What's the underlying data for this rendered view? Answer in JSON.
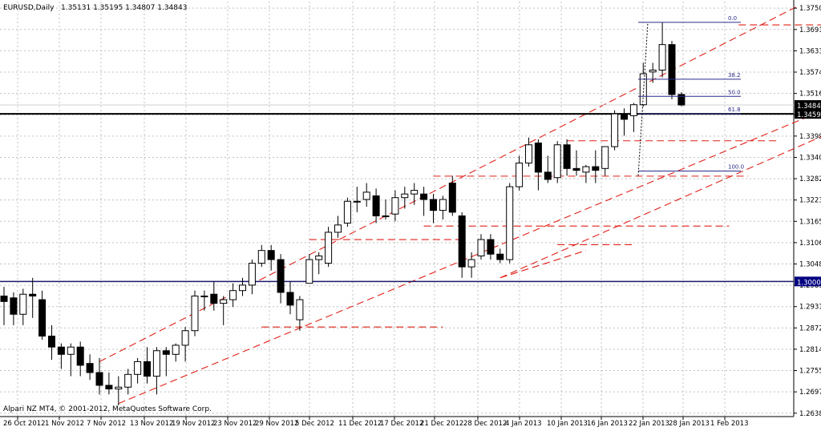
{
  "header": {
    "symbol_label": "EURUSD,Daily",
    "ohlc": "1.35131 1.35195 1.34807 1.34843"
  },
  "footer": {
    "copyright": "Alpari NZ MT4, © 2001-2012, MetaQuotes Software Corp."
  },
  "colors": {
    "background": "#ffffff",
    "grid": "#c0c0c0",
    "candle_body_bear": "#000000",
    "candle_body_bull": "#ffffff",
    "trendline": "#e0201a",
    "fibo": "#2a2a8a",
    "hline_dark": "#000000",
    "hline_navy": "#1a1a6a",
    "price_tag_bg": "#000000",
    "price_tag_fg": "#ffffff",
    "navy_tag_bg": "#000080"
  },
  "chart_data": {
    "type": "candlestick",
    "title": "EURUSD,Daily",
    "grid": true,
    "ylim": [
      1.2638,
      1.3757
    ],
    "y_ticks": [
      "1.37500",
      "1.36915",
      "1.36330",
      "1.35745",
      "1.35160",
      "1.34575",
      "1.33990",
      "1.33405",
      "1.32820",
      "1.32235",
      "1.31650",
      "1.31065",
      "1.30480",
      "1.29895",
      "1.29310",
      "1.28725",
      "1.28140",
      "1.27555",
      "1.26970",
      "1.26385"
    ],
    "x_ticks": [
      "26 Oct 2012",
      "1 Nov 2012",
      "7 Nov 2012",
      "13 Nov 2012",
      "19 Nov 2012",
      "23 Nov 2012",
      "29 Nov 2012",
      "5 Dec 2012",
      "11 Dec 2012",
      "17 Dec 2012",
      "21 Dec 2012",
      "28 Dec 2012",
      "4 Jan 2013",
      "10 Jan 2013",
      "16 Jan 2013",
      "22 Jan 2013",
      "28 Jan 2013",
      "1 Feb 2013"
    ],
    "current_price": "1.34843",
    "level_price": "1.34598",
    "round_level": "1.30000",
    "candles": [
      {
        "o": 1.296,
        "h": 1.2985,
        "l": 1.288,
        "c": 1.2945
      },
      {
        "o": 1.2955,
        "h": 1.297,
        "l": 1.288,
        "c": 1.291
      },
      {
        "o": 1.291,
        "h": 1.298,
        "l": 1.288,
        "c": 1.2965
      },
      {
        "o": 1.2965,
        "h": 1.301,
        "l": 1.29,
        "c": 1.296
      },
      {
        "o": 1.295,
        "h": 1.2975,
        "l": 1.284,
        "c": 1.285
      },
      {
        "o": 1.285,
        "h": 1.288,
        "l": 1.2785,
        "c": 1.282
      },
      {
        "o": 1.282,
        "h": 1.283,
        "l": 1.276,
        "c": 1.28
      },
      {
        "o": 1.28,
        "h": 1.283,
        "l": 1.274,
        "c": 1.282
      },
      {
        "o": 1.282,
        "h": 1.2835,
        "l": 1.274,
        "c": 1.277
      },
      {
        "o": 1.2775,
        "h": 1.28,
        "l": 1.273,
        "c": 1.275
      },
      {
        "o": 1.275,
        "h": 1.279,
        "l": 1.269,
        "c": 1.2715
      },
      {
        "o": 1.2715,
        "h": 1.275,
        "l": 1.269,
        "c": 1.2705
      },
      {
        "o": 1.2705,
        "h": 1.274,
        "l": 1.266,
        "c": 1.271
      },
      {
        "o": 1.271,
        "h": 1.276,
        "l": 1.269,
        "c": 1.2745
      },
      {
        "o": 1.2745,
        "h": 1.279,
        "l": 1.272,
        "c": 1.278
      },
      {
        "o": 1.278,
        "h": 1.282,
        "l": 1.272,
        "c": 1.274
      },
      {
        "o": 1.274,
        "h": 1.282,
        "l": 1.269,
        "c": 1.281
      },
      {
        "o": 1.281,
        "h": 1.282,
        "l": 1.274,
        "c": 1.28
      },
      {
        "o": 1.28,
        "h": 1.283,
        "l": 1.278,
        "c": 1.2825
      },
      {
        "o": 1.2825,
        "h": 1.2875,
        "l": 1.278,
        "c": 1.2865
      },
      {
        "o": 1.2865,
        "h": 1.2975,
        "l": 1.285,
        "c": 1.296
      },
      {
        "o": 1.296,
        "h": 1.2975,
        "l": 1.292,
        "c": 1.296
      },
      {
        "o": 1.2965,
        "h": 1.3,
        "l": 1.292,
        "c": 1.294
      },
      {
        "o": 1.294,
        "h": 1.296,
        "l": 1.288,
        "c": 1.295
      },
      {
        "o": 1.295,
        "h": 1.2995,
        "l": 1.293,
        "c": 1.2975
      },
      {
        "o": 1.2975,
        "h": 1.301,
        "l": 1.296,
        "c": 1.299
      },
      {
        "o": 1.299,
        "h": 1.306,
        "l": 1.2965,
        "c": 1.305
      },
      {
        "o": 1.305,
        "h": 1.31,
        "l": 1.304,
        "c": 1.3085
      },
      {
        "o": 1.3085,
        "h": 1.31,
        "l": 1.303,
        "c": 1.306
      },
      {
        "o": 1.306,
        "h": 1.3075,
        "l": 1.294,
        "c": 1.297
      },
      {
        "o": 1.297,
        "h": 1.3,
        "l": 1.291,
        "c": 1.2935
      },
      {
        "o": 1.2895,
        "h": 1.296,
        "l": 1.2865,
        "c": 1.295
      },
      {
        "o": 1.2995,
        "h": 1.3075,
        "l": 1.2995,
        "c": 1.306
      },
      {
        "o": 1.306,
        "h": 1.308,
        "l": 1.302,
        "c": 1.307
      },
      {
        "o": 1.305,
        "h": 1.315,
        "l": 1.304,
        "c": 1.3135
      },
      {
        "o": 1.3135,
        "h": 1.318,
        "l": 1.312,
        "c": 1.3155
      },
      {
        "o": 1.316,
        "h": 1.323,
        "l": 1.315,
        "c": 1.322
      },
      {
        "o": 1.322,
        "h": 1.326,
        "l": 1.319,
        "c": 1.322
      },
      {
        "o": 1.3225,
        "h": 1.327,
        "l": 1.3205,
        "c": 1.3245
      },
      {
        "o": 1.3235,
        "h": 1.3255,
        "l": 1.316,
        "c": 1.318
      },
      {
        "o": 1.318,
        "h": 1.3225,
        "l": 1.317,
        "c": 1.318
      },
      {
        "o": 1.3185,
        "h": 1.325,
        "l": 1.3165,
        "c": 1.323
      },
      {
        "o": 1.323,
        "h": 1.326,
        "l": 1.32,
        "c": 1.324
      },
      {
        "o": 1.324,
        "h": 1.327,
        "l": 1.321,
        "c": 1.325
      },
      {
        "o": 1.324,
        "h": 1.326,
        "l": 1.318,
        "c": 1.3225
      },
      {
        "o": 1.3225,
        "h": 1.324,
        "l": 1.316,
        "c": 1.3195
      },
      {
        "o": 1.3195,
        "h": 1.3235,
        "l": 1.317,
        "c": 1.3225
      },
      {
        "o": 1.327,
        "h": 1.329,
        "l": 1.318,
        "c": 1.319
      },
      {
        "o": 1.318,
        "h": 1.319,
        "l": 1.301,
        "c": 1.304
      },
      {
        "o": 1.304,
        "h": 1.308,
        "l": 1.301,
        "c": 1.306
      },
      {
        "o": 1.307,
        "h": 1.313,
        "l": 1.306,
        "c": 1.3115
      },
      {
        "o": 1.3115,
        "h": 1.313,
        "l": 1.306,
        "c": 1.3075
      },
      {
        "o": 1.3075,
        "h": 1.309,
        "l": 1.305,
        "c": 1.306
      },
      {
        "o": 1.306,
        "h": 1.327,
        "l": 1.305,
        "c": 1.326
      },
      {
        "o": 1.326,
        "h": 1.3345,
        "l": 1.325,
        "c": 1.3325
      },
      {
        "o": 1.3325,
        "h": 1.3395,
        "l": 1.3315,
        "c": 1.3375
      },
      {
        "o": 1.338,
        "h": 1.339,
        "l": 1.325,
        "c": 1.33
      },
      {
        "o": 1.33,
        "h": 1.3345,
        "l": 1.327,
        "c": 1.328
      },
      {
        "o": 1.3285,
        "h": 1.3385,
        "l": 1.327,
        "c": 1.3375
      },
      {
        "o": 1.3375,
        "h": 1.339,
        "l": 1.329,
        "c": 1.331
      },
      {
        "o": 1.331,
        "h": 1.336,
        "l": 1.329,
        "c": 1.3305
      },
      {
        "o": 1.33,
        "h": 1.332,
        "l": 1.327,
        "c": 1.3315
      },
      {
        "o": 1.3315,
        "h": 1.336,
        "l": 1.327,
        "c": 1.3305
      },
      {
        "o": 1.331,
        "h": 1.337,
        "l": 1.329,
        "c": 1.337
      },
      {
        "o": 1.337,
        "h": 1.347,
        "l": 1.336,
        "c": 1.346
      },
      {
        "o": 1.346,
        "h": 1.3475,
        "l": 1.34,
        "c": 1.3445
      },
      {
        "o": 1.3455,
        "h": 1.349,
        "l": 1.341,
        "c": 1.3485
      },
      {
        "o": 1.3485,
        "h": 1.36,
        "l": 1.348,
        "c": 1.357
      },
      {
        "o": 1.3575,
        "h": 1.36,
        "l": 1.3545,
        "c": 1.358
      },
      {
        "o": 1.358,
        "h": 1.3711,
        "l": 1.356,
        "c": 1.365
      },
      {
        "o": 1.365,
        "h": 1.366,
        "l": 1.35,
        "c": 1.3513
      },
      {
        "o": 1.35131,
        "h": 1.35195,
        "l": 1.34807,
        "c": 1.34843
      }
    ],
    "fib_levels": [
      {
        "label": "0.0",
        "price": 1.3711
      },
      {
        "label": "38.2",
        "price": 1.3555
      },
      {
        "label": "50.0",
        "price": 1.3508
      },
      {
        "label": "61.8",
        "price": 1.346
      },
      {
        "label": "100.0",
        "price": 1.3303
      }
    ],
    "resistance_levels": [
      {
        "price": 1.3704,
        "from": 77,
        "to": 90
      },
      {
        "price": 1.3386,
        "from": 59,
        "to": 81
      },
      {
        "price": 1.3289,
        "from": 45,
        "to": 78
      },
      {
        "price": 1.3152,
        "from": 44,
        "to": 76
      },
      {
        "price": 1.3115,
        "from": 32,
        "to": 48
      },
      {
        "price": 1.3101,
        "from": 58,
        "to": 66
      },
      {
        "price": 1.2875,
        "from": 27,
        "to": 46
      }
    ]
  }
}
